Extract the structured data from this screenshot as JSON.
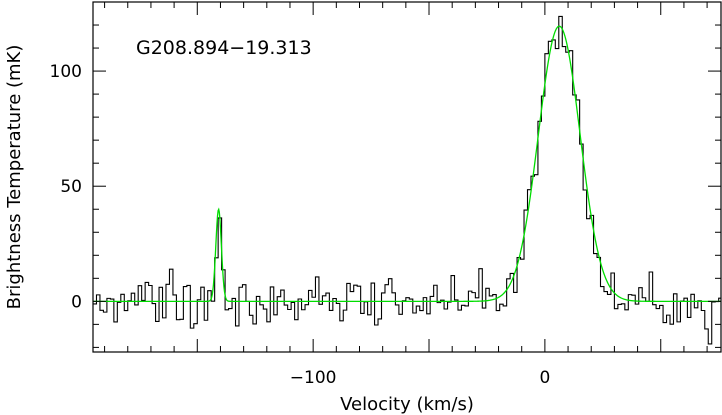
{
  "chart_data": {
    "type": "line",
    "title": "",
    "annotation": "G208.894−19.313",
    "xlabel": "Velocity (km/s)",
    "ylabel": "Brightness Temperature (mK)",
    "xlim": [
      -195,
      76
    ],
    "ylim": [
      -22,
      130
    ],
    "x_ticks": [
      -100,
      0
    ],
    "x_tick_labels": [
      "−100",
      "0"
    ],
    "y_ticks": [
      0,
      50,
      100
    ],
    "y_tick_labels": [
      "0",
      "50",
      "100"
    ],
    "grid": false,
    "legend": "none",
    "colors": {
      "observed": "#000000",
      "fit": "#00dd00"
    },
    "series": [
      {
        "components": [
          {
            "center": -140.8,
            "amplitude": 40,
            "sigma": 1.2
          },
          {
            "center": 6.2,
            "amplitude": 119.5,
            "sigma": 9.0
          }
        ],
        "channel_width": 1.5,
        "noise_rms": 6
      },
      {
        "style": "smooth"
      }
    ]
  }
}
